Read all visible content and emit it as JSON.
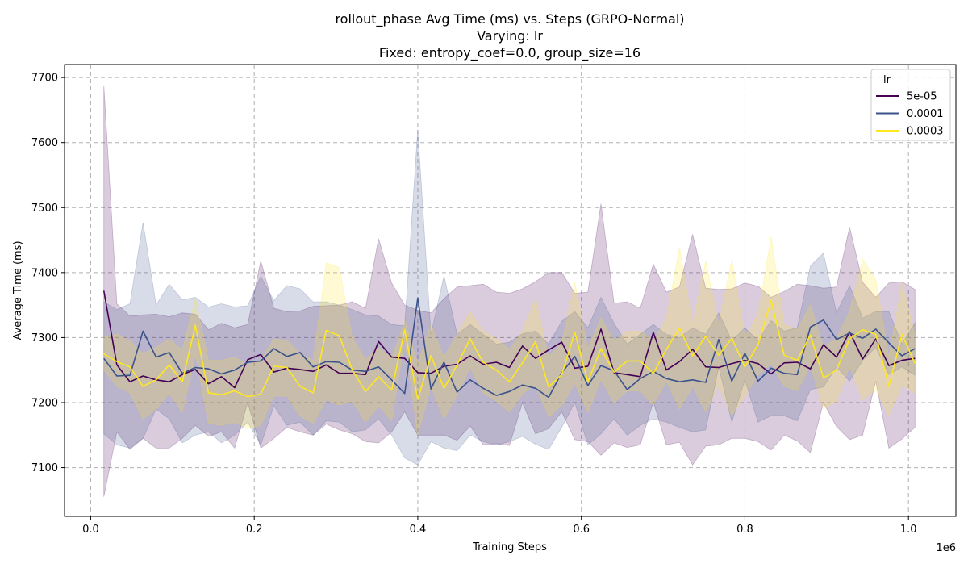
{
  "chart_data": {
    "type": "line",
    "title": "rollout_phase Avg Time (ms) vs. Steps (GRPO-Normal)",
    "subtitle_lines": [
      "Varying: lr",
      "Fixed: entropy_coef=0.0, group_size=16"
    ],
    "xlabel": "Training Steps",
    "ylabel": "Average Time (ms)",
    "x_offset_label": "1e6",
    "xlim": [
      -0.032,
      1.058
    ],
    "ylim": [
      7025,
      7720
    ],
    "x_ticks": [
      0.0,
      0.2,
      0.4,
      0.6,
      0.8,
      1.0
    ],
    "x_tick_labels": [
      "0.0",
      "0.2",
      "0.4",
      "0.6",
      "0.8",
      "1.0"
    ],
    "y_ticks": [
      7100,
      7200,
      7300,
      7400,
      7500,
      7600,
      7700
    ],
    "y_tick_labels": [
      "7100",
      "7200",
      "7300",
      "7400",
      "7500",
      "7600",
      "7700"
    ],
    "grid": true,
    "legend": {
      "title": "lr",
      "placement": "top-right"
    },
    "x": [
      0.016,
      0.032,
      0.048,
      0.064,
      0.08,
      0.096,
      0.112,
      0.128,
      0.144,
      0.16,
      0.176,
      0.192,
      0.208,
      0.224,
      0.24,
      0.256,
      0.272,
      0.288,
      0.304,
      0.32,
      0.336,
      0.352,
      0.368,
      0.384,
      0.4,
      0.416,
      0.432,
      0.448,
      0.464,
      0.48,
      0.496,
      0.512,
      0.528,
      0.544,
      0.56,
      0.576,
      0.592,
      0.608,
      0.624,
      0.64,
      0.656,
      0.672,
      0.688,
      0.704,
      0.72,
      0.736,
      0.752,
      0.768,
      0.784,
      0.8,
      0.816,
      0.832,
      0.848,
      0.864,
      0.88,
      0.896,
      0.912,
      0.928,
      0.944,
      0.96,
      0.976,
      0.992,
      1.008
    ],
    "series": [
      {
        "name": "5e-05",
        "color": "#440154",
        "values": [
          7372,
          7258,
          7232,
          7241,
          7235,
          7232,
          7243,
          7251,
          7229,
          7240,
          7223,
          7266,
          7274,
          7247,
          7253,
          7251,
          7248,
          7258,
          7245,
          7245,
          7243,
          7294,
          7270,
          7268,
          7246,
          7245,
          7256,
          7259,
          7272,
          7259,
          7262,
          7254,
          7287,
          7268,
          7281,
          7293,
          7253,
          7256,
          7313,
          7246,
          7243,
          7240,
          7308,
          7250,
          7263,
          7282,
          7255,
          7254,
          7260,
          7265,
          7260,
          7244,
          7261,
          7262,
          7252,
          7289,
          7270,
          7309,
          7267,
          7298,
          7257,
          7265,
          7268
        ],
        "upper": [
          7688,
          7352,
          7333,
          7335,
          7336,
          7332,
          7338,
          7336,
          7312,
          7322,
          7315,
          7320,
          7418,
          7345,
          7340,
          7341,
          7348,
          7349,
          7350,
          7355,
          7345,
          7452,
          7384,
          7350,
          7342,
          7338,
          7360,
          7378,
          7380,
          7382,
          7370,
          7368,
          7375,
          7386,
          7400,
          7400,
          7368,
          7370,
          7506,
          7353,
          7355,
          7345,
          7413,
          7370,
          7378,
          7459,
          7376,
          7374,
          7375,
          7384,
          7379,
          7362,
          7371,
          7382,
          7380,
          7376,
          7378,
          7470,
          7385,
          7362,
          7384,
          7386,
          7374
        ],
        "lower": [
          7055,
          7155,
          7128,
          7145,
          7130,
          7130,
          7145,
          7165,
          7148,
          7155,
          7130,
          7200,
          7130,
          7145,
          7162,
          7155,
          7150,
          7167,
          7158,
          7152,
          7140,
          7138,
          7155,
          7186,
          7150,
          7150,
          7150,
          7142,
          7164,
          7135,
          7137,
          7134,
          7200,
          7152,
          7160,
          7186,
          7143,
          7140,
          7119,
          7138,
          7131,
          7135,
          7201,
          7135,
          7139,
          7104,
          7133,
          7135,
          7145,
          7145,
          7140,
          7127,
          7150,
          7141,
          7123,
          7200,
          7163,
          7143,
          7150,
          7233,
          7130,
          7144,
          7162
        ]
      },
      {
        "name": "0.0001",
        "color": "#3b528b",
        "values": [
          7268,
          7241,
          7242,
          7310,
          7270,
          7277,
          7245,
          7254,
          7252,
          7244,
          7250,
          7262,
          7264,
          7283,
          7271,
          7277,
          7255,
          7263,
          7262,
          7250,
          7248,
          7255,
          7235,
          7214,
          7361,
          7221,
          7262,
          7216,
          7235,
          7222,
          7211,
          7217,
          7227,
          7222,
          7208,
          7246,
          7271,
          7226,
          7257,
          7249,
          7220,
          7237,
          7248,
          7237,
          7232,
          7235,
          7231,
          7297,
          7233,
          7276,
          7233,
          7253,
          7245,
          7243,
          7316,
          7327,
          7297,
          7307,
          7299,
          7313,
          7292,
          7272,
          7283
        ],
        "upper": [
          7355,
          7343,
          7352,
          7477,
          7350,
          7382,
          7358,
          7362,
          7347,
          7352,
          7347,
          7349,
          7394,
          7357,
          7380,
          7375,
          7355,
          7355,
          7350,
          7343,
          7335,
          7333,
          7320,
          7318,
          7620,
          7305,
          7395,
          7305,
          7320,
          7305,
          7290,
          7293,
          7306,
          7310,
          7290,
          7325,
          7340,
          7315,
          7362,
          7322,
          7290,
          7305,
          7320,
          7305,
          7300,
          7315,
          7305,
          7338,
          7295,
          7315,
          7295,
          7326,
          7310,
          7315,
          7410,
          7430,
          7338,
          7380,
          7330,
          7340,
          7340,
          7290,
          7323
        ],
        "lower": [
          7152,
          7135,
          7130,
          7145,
          7190,
          7175,
          7138,
          7150,
          7155,
          7138,
          7150,
          7170,
          7135,
          7195,
          7165,
          7170,
          7150,
          7172,
          7170,
          7155,
          7158,
          7175,
          7150,
          7115,
          7104,
          7140,
          7130,
          7126,
          7150,
          7140,
          7135,
          7140,
          7148,
          7136,
          7128,
          7162,
          7200,
          7135,
          7152,
          7175,
          7150,
          7165,
          7175,
          7170,
          7162,
          7155,
          7158,
          7255,
          7170,
          7235,
          7170,
          7180,
          7180,
          7172,
          7220,
          7224,
          7255,
          7233,
          7265,
          7285,
          7243,
          7255,
          7242
        ]
      },
      {
        "name": "0.0003",
        "color": "#fde725",
        "values": [
          7275,
          7263,
          7255,
          7225,
          7235,
          7258,
          7232,
          7319,
          7215,
          7212,
          7218,
          7209,
          7213,
          7256,
          7254,
          7225,
          7215,
          7311,
          7303,
          7250,
          7217,
          7240,
          7219,
          7312,
          7205,
          7272,
          7222,
          7258,
          7298,
          7262,
          7250,
          7232,
          7261,
          7294,
          7224,
          7243,
          7308,
          7232,
          7283,
          7247,
          7264,
          7264,
          7245,
          7282,
          7314,
          7272,
          7302,
          7273,
          7299,
          7255,
          7289,
          7357,
          7273,
          7265,
          7304,
          7238,
          7250,
          7298,
          7312,
          7305,
          7225,
          7305,
          7260
        ],
        "upper": [
          7300,
          7305,
          7295,
          7275,
          7285,
          7298,
          7280,
          7360,
          7265,
          7265,
          7270,
          7258,
          7265,
          7298,
          7296,
          7275,
          7265,
          7415,
          7408,
          7300,
          7265,
          7285,
          7268,
          7325,
          7260,
          7320,
          7270,
          7305,
          7340,
          7310,
          7298,
          7282,
          7310,
          7360,
          7270,
          7292,
          7385,
          7282,
          7330,
          7295,
          7310,
          7310,
          7295,
          7330,
          7438,
          7320,
          7418,
          7320,
          7420,
          7300,
          7335,
          7455,
          7320,
          7312,
          7350,
          7286,
          7298,
          7340,
          7420,
          7390,
          7270,
          7383,
          7305
        ],
        "lower": [
          7250,
          7225,
          7215,
          7175,
          7190,
          7215,
          7185,
          7275,
          7168,
          7165,
          7170,
          7160,
          7165,
          7210,
          7210,
          7180,
          7168,
          7205,
          7196,
          7202,
          7170,
          7195,
          7172,
          7298,
          7150,
          7225,
          7175,
          7212,
          7255,
          7215,
          7203,
          7185,
          7214,
          7228,
          7178,
          7196,
          7230,
          7185,
          7236,
          7200,
          7218,
          7218,
          7196,
          7234,
          7190,
          7225,
          7186,
          7226,
          7180,
          7210,
          7243,
          7260,
          7226,
          7218,
          7258,
          7190,
          7202,
          7256,
          7204,
          7220,
          7180,
          7227,
          7215
        ]
      }
    ]
  }
}
